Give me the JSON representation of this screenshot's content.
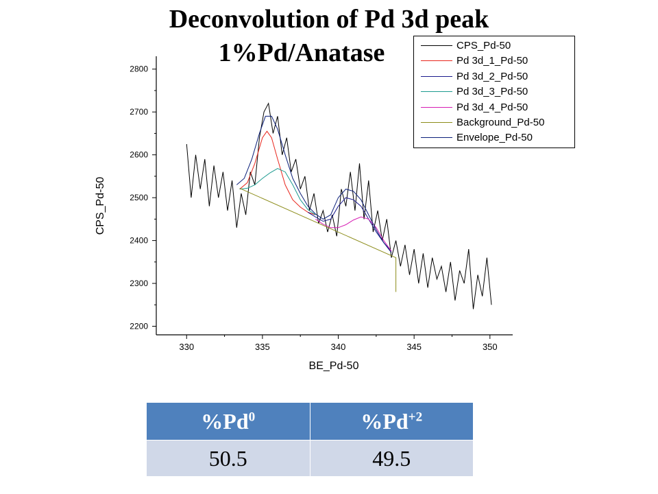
{
  "title_line1": "Deconvolution of Pd 3d peak",
  "title_line2": "1%Pd/Anatase",
  "chart_data": {
    "type": "line",
    "xlabel": "BE_Pd-50",
    "ylabel": "CPS_Pd-50",
    "xlim": [
      328,
      351.5
    ],
    "ylim": [
      2180,
      2830
    ],
    "xticks": [
      330,
      335,
      340,
      345,
      350
    ],
    "yticks": [
      2200,
      2300,
      2400,
      2500,
      2600,
      2700,
      2800
    ],
    "grid": false,
    "legend_position": "top-right",
    "series": [
      {
        "name": "CPS_Pd-50",
        "color": "#000000",
        "x": [
          330.0,
          330.3,
          330.6,
          330.9,
          331.2,
          331.5,
          331.8,
          332.1,
          332.4,
          332.7,
          333.0,
          333.3,
          333.6,
          333.9,
          334.2,
          334.5,
          334.8,
          335.1,
          335.4,
          335.7,
          336.0,
          336.3,
          336.6,
          336.9,
          337.2,
          337.5,
          337.8,
          338.1,
          338.4,
          338.7,
          339.0,
          339.3,
          339.6,
          339.9,
          340.2,
          340.5,
          340.8,
          341.1,
          341.4,
          341.7,
          342.0,
          342.3,
          342.6,
          342.9,
          343.2,
          343.5,
          343.8,
          344.1,
          344.4,
          344.7,
          345.0,
          345.3,
          345.6,
          345.9,
          346.2,
          346.5,
          346.8,
          347.1,
          347.4,
          347.7,
          348.0,
          348.3,
          348.6,
          348.9,
          349.2,
          349.5,
          349.8,
          350.1
        ],
        "y": [
          2625,
          2500,
          2600,
          2520,
          2590,
          2480,
          2575,
          2500,
          2560,
          2470,
          2540,
          2430,
          2510,
          2460,
          2560,
          2530,
          2640,
          2700,
          2720,
          2650,
          2690,
          2600,
          2640,
          2560,
          2590,
          2520,
          2550,
          2470,
          2510,
          2440,
          2470,
          2420,
          2460,
          2410,
          2520,
          2480,
          2560,
          2470,
          2580,
          2450,
          2540,
          2420,
          2470,
          2400,
          2450,
          2360,
          2400,
          2340,
          2390,
          2320,
          2380,
          2300,
          2370,
          2290,
          2360,
          2310,
          2340,
          2280,
          2350,
          2260,
          2330,
          2300,
          2380,
          2240,
          2320,
          2270,
          2360,
          2250
        ]
      },
      {
        "name": "Pd 3d_1_Pd-50",
        "color": "#e8251c",
        "x": [
          333.5,
          334.0,
          334.5,
          335.0,
          335.3,
          335.6,
          336.0,
          336.5,
          337.0,
          337.5,
          338.0,
          338.5
        ],
        "y": [
          2520,
          2535,
          2580,
          2640,
          2655,
          2640,
          2590,
          2530,
          2495,
          2478,
          2466,
          2460
        ]
      },
      {
        "name": "Pd 3d_2_Pd-50",
        "color": "#1a1a8c",
        "x": [
          338.0,
          338.5,
          339.0,
          339.5,
          340.0,
          340.5,
          341.0,
          341.5,
          342.0,
          342.5,
          343.0,
          343.5
        ],
        "y": [
          2466,
          2455,
          2445,
          2450,
          2480,
          2500,
          2495,
          2480,
          2450,
          2420,
          2395,
          2375
        ]
      },
      {
        "name": "Pd 3d_3_Pd-50",
        "color": "#1b9a8f",
        "x": [
          333.5,
          334.0,
          334.5,
          335.0,
          335.5,
          336.0,
          336.5,
          337.0,
          337.5,
          338.0,
          338.5
        ],
        "y": [
          2520,
          2522,
          2530,
          2545,
          2558,
          2568,
          2560,
          2530,
          2495,
          2472,
          2460
        ]
      },
      {
        "name": "Pd 3d_4_Pd-50",
        "color": "#d61cb3",
        "x": [
          338.5,
          339.0,
          339.5,
          340.0,
          340.5,
          341.0,
          341.5,
          342.0,
          342.5,
          343.0,
          343.5
        ],
        "y": [
          2450,
          2438,
          2430,
          2430,
          2437,
          2448,
          2455,
          2450,
          2430,
          2400,
          2375
        ]
      },
      {
        "name": "Background_Pd-50",
        "color": "#8c8c1a",
        "x": [
          333.5,
          343.8,
          343.8
        ],
        "y": [
          2522,
          2360,
          2280
        ]
      },
      {
        "name": "Envelope_Pd-50",
        "color": "#0b1f7a",
        "x": [
          333.3,
          333.8,
          334.3,
          334.8,
          335.2,
          335.6,
          336.0,
          336.5,
          337.0,
          337.5,
          338.0,
          338.5,
          339.0,
          339.5,
          340.0,
          340.5,
          341.0,
          341.5,
          342.0,
          342.5,
          343.0,
          343.5
        ],
        "y": [
          2530,
          2545,
          2590,
          2650,
          2690,
          2690,
          2660,
          2600,
          2545,
          2510,
          2480,
          2462,
          2450,
          2460,
          2500,
          2520,
          2515,
          2495,
          2460,
          2425,
          2395,
          2372
        ]
      }
    ]
  },
  "table": {
    "header_pd0_base": "%Pd",
    "header_pd0_sup": "0",
    "header_pd2_base": "%Pd",
    "header_pd2_sup": "+2",
    "value_pd0": "50.5",
    "value_pd2": "49.5"
  }
}
